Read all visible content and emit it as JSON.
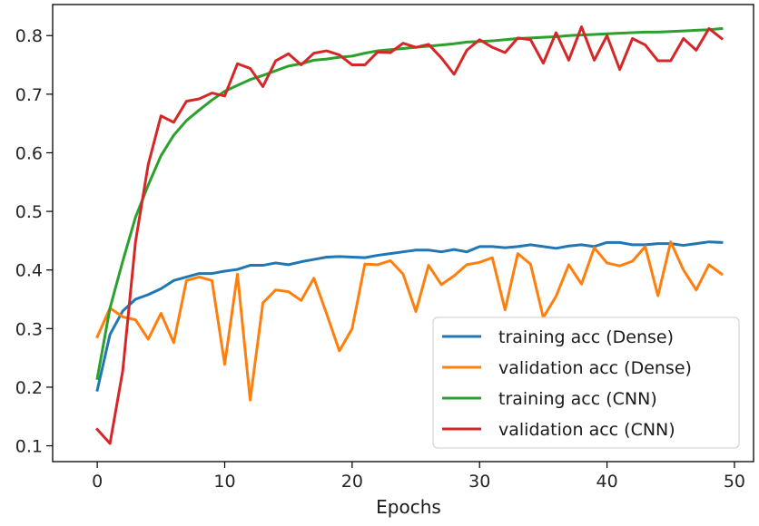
{
  "chart_data": {
    "type": "line",
    "title": "",
    "xlabel": "Epochs",
    "ylabel": "",
    "xlim": [
      -3.5,
      51.5
    ],
    "ylim": [
      0.073,
      0.853
    ],
    "xticks": [
      0,
      10,
      20,
      30,
      40,
      50
    ],
    "yticks": [
      0.1,
      0.2,
      0.3,
      0.4,
      0.5,
      0.6,
      0.7,
      0.8
    ],
    "grid": false,
    "legend_position": "lower-right",
    "x": [
      0,
      1,
      2,
      3,
      4,
      5,
      6,
      7,
      8,
      9,
      10,
      11,
      12,
      13,
      14,
      15,
      16,
      17,
      18,
      19,
      20,
      21,
      22,
      23,
      24,
      25,
      26,
      27,
      28,
      29,
      30,
      31,
      32,
      33,
      34,
      35,
      36,
      37,
      38,
      39,
      40,
      41,
      42,
      43,
      44,
      45,
      46,
      47,
      48,
      49
    ],
    "series": [
      {
        "name": "training acc (Dense)",
        "color": "#1f77b4",
        "values": [
          0.195,
          0.29,
          0.33,
          0.35,
          0.358,
          0.368,
          0.382,
          0.388,
          0.394,
          0.394,
          0.398,
          0.401,
          0.408,
          0.408,
          0.412,
          0.409,
          0.414,
          0.418,
          0.422,
          0.423,
          0.422,
          0.421,
          0.425,
          0.428,
          0.431,
          0.434,
          0.434,
          0.431,
          0.435,
          0.431,
          0.44,
          0.44,
          0.438,
          0.44,
          0.443,
          0.44,
          0.437,
          0.441,
          0.443,
          0.44,
          0.447,
          0.447,
          0.443,
          0.443,
          0.445,
          0.445,
          0.442,
          0.445,
          0.448,
          0.447
        ]
      },
      {
        "name": "validation acc (Dense)",
        "color": "#ff7f0e",
        "values": [
          0.286,
          0.335,
          0.32,
          0.315,
          0.282,
          0.326,
          0.276,
          0.382,
          0.388,
          0.382,
          0.239,
          0.393,
          0.178,
          0.344,
          0.366,
          0.363,
          0.348,
          0.386,
          0.325,
          0.262,
          0.3,
          0.41,
          0.409,
          0.416,
          0.393,
          0.329,
          0.408,
          0.375,
          0.39,
          0.409,
          0.413,
          0.421,
          0.332,
          0.428,
          0.41,
          0.319,
          0.355,
          0.409,
          0.376,
          0.438,
          0.412,
          0.407,
          0.415,
          0.44,
          0.356,
          0.448,
          0.4,
          0.366,
          0.409,
          0.393
        ]
      },
      {
        "name": "training acc (CNN)",
        "color": "#2ca02c",
        "values": [
          0.215,
          0.335,
          0.415,
          0.49,
          0.545,
          0.595,
          0.63,
          0.655,
          0.673,
          0.69,
          0.705,
          0.715,
          0.725,
          0.732,
          0.74,
          0.748,
          0.752,
          0.758,
          0.76,
          0.763,
          0.765,
          0.77,
          0.774,
          0.776,
          0.778,
          0.78,
          0.782,
          0.784,
          0.786,
          0.789,
          0.79,
          0.791,
          0.793,
          0.795,
          0.796,
          0.797,
          0.798,
          0.8,
          0.801,
          0.802,
          0.803,
          0.804,
          0.805,
          0.806,
          0.806,
          0.807,
          0.808,
          0.809,
          0.81,
          0.812
        ]
      },
      {
        "name": "validation acc (CNN)",
        "color": "#d62728",
        "values": [
          0.128,
          0.104,
          0.228,
          0.448,
          0.58,
          0.663,
          0.652,
          0.688,
          0.692,
          0.702,
          0.697,
          0.752,
          0.744,
          0.713,
          0.757,
          0.769,
          0.75,
          0.77,
          0.774,
          0.767,
          0.75,
          0.75,
          0.772,
          0.771,
          0.787,
          0.78,
          0.785,
          0.762,
          0.734,
          0.775,
          0.793,
          0.78,
          0.771,
          0.796,
          0.793,
          0.753,
          0.805,
          0.758,
          0.815,
          0.758,
          0.8,
          0.742,
          0.795,
          0.784,
          0.757,
          0.757,
          0.795,
          0.775,
          0.812,
          0.795
        ]
      }
    ]
  }
}
